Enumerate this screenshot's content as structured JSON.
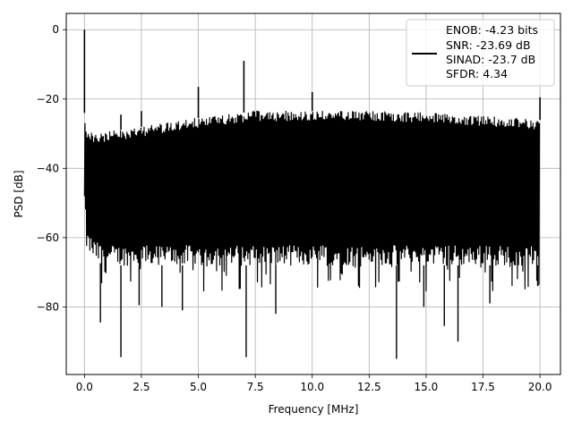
{
  "chart_data": {
    "type": "line",
    "title": "",
    "xlabel": "Frequency [MHz]",
    "ylabel": "PSD [dB]",
    "xlim": [
      -0.8,
      20.9
    ],
    "ylim": [
      -99.5,
      4.7
    ],
    "xticks": [
      0.0,
      2.5,
      5.0,
      7.5,
      10.0,
      12.5,
      15.0,
      17.5,
      20.0
    ],
    "xtick_labels": [
      "0.0",
      "2.5",
      "5.0",
      "7.5",
      "10.0",
      "12.5",
      "15.0",
      "17.5",
      "20.0"
    ],
    "yticks": [
      0,
      -20,
      -40,
      -60,
      -80
    ],
    "ytick_labels": [
      "0",
      "−20",
      "−40",
      "−60",
      "−80"
    ],
    "grid": true,
    "line_color": "#000000",
    "legend": {
      "location": "top-right",
      "lines": [
        "ENOB: -4.23 bits",
        "SNR: -23.69 dB",
        "SINAD: -23.7 dB",
        "SFDR: 4.34"
      ]
    },
    "series": [
      {
        "style": "dense noise floor",
        "x_range": [
          0.0,
          20.0
        ],
        "envelope": {
          "x": [
            0.0,
            0.1,
            0.5,
            1.0,
            2.5,
            5.0,
            7.5,
            10.0,
            12.5,
            15.0,
            17.5,
            20.0
          ],
          "upper": [
            -24.0,
            -29.0,
            -30.0,
            -29.5,
            -28.0,
            -25.5,
            -23.5,
            -23.5,
            -23.5,
            -24.0,
            -25.0,
            -26.0
          ],
          "lower": [
            -52.0,
            -64.0,
            -67.0,
            -68.0,
            -68.0,
            -68.0,
            -68.0,
            -68.0,
            -68.0,
            -68.0,
            -68.0,
            -68.0
          ]
        },
        "spikes": [
          {
            "x": 0.0,
            "y": 0.0
          },
          {
            "x": 1.6,
            "y": -24.5
          },
          {
            "x": 2.5,
            "y": -23.5
          },
          {
            "x": 5.0,
            "y": -16.5
          },
          {
            "x": 7.0,
            "y": -9.0
          },
          {
            "x": 10.0,
            "y": -18.0
          },
          {
            "x": 20.0,
            "y": -19.5
          }
        ],
        "dips": [
          {
            "x": 0.7,
            "y": -84.5
          },
          {
            "x": 1.6,
            "y": -94.5
          },
          {
            "x": 2.4,
            "y": -79.5
          },
          {
            "x": 3.4,
            "y": -80.0
          },
          {
            "x": 4.3,
            "y": -81.0
          },
          {
            "x": 7.1,
            "y": -94.5
          },
          {
            "x": 8.4,
            "y": -82.0
          },
          {
            "x": 13.7,
            "y": -95.0
          },
          {
            "x": 14.9,
            "y": -80.0
          },
          {
            "x": 15.8,
            "y": -85.5
          },
          {
            "x": 16.4,
            "y": -90.0
          },
          {
            "x": 17.8,
            "y": -79.0
          },
          {
            "x": 19.9,
            "y": -74.0
          }
        ]
      }
    ]
  }
}
